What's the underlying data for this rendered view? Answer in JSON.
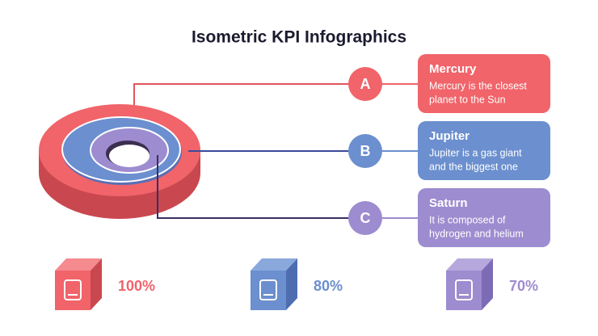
{
  "header": {
    "title": "Isometric KPI Infographics"
  },
  "items": [
    {
      "letter": "A",
      "title": "Mercury",
      "lines": [
        "Mercury is the closest",
        "planet to the Sun"
      ]
    },
    {
      "letter": "B",
      "title": "Jupiter",
      "lines": [
        "Jupiter is a gas giant",
        "and the biggest one"
      ]
    },
    {
      "letter": "C",
      "title": "Saturn",
      "lines": [
        "It is composed of",
        "hydrogen and helium"
      ]
    }
  ],
  "kpis": [
    {
      "label": "100%"
    },
    {
      "label": "80%"
    },
    {
      "label": "70%"
    }
  ]
}
